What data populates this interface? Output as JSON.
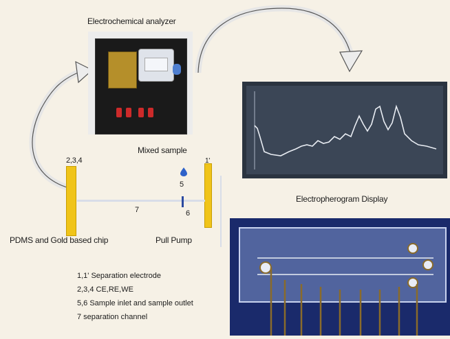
{
  "labels": {
    "analyzer": "Electrochemical analyzer",
    "electropherogram": "Electropherogram Display",
    "mixed_sample": "Mixed sample",
    "chip": "PDMS and Gold based chip",
    "pump": "Pull Pump",
    "num_234": "2,3,4",
    "num_1p": "1'",
    "num_5": "5",
    "num_6": "6",
    "num_7": "7"
  },
  "legend": [
    "1,1' Separation electrode",
    "2,3,4 CE,RE,WE",
    "5,6 Sample inlet and sample outlet",
    "7 separation channel"
  ],
  "icons": {
    "arrow": "curved-arrow-icon",
    "drop": "sample-drop-icon"
  }
}
